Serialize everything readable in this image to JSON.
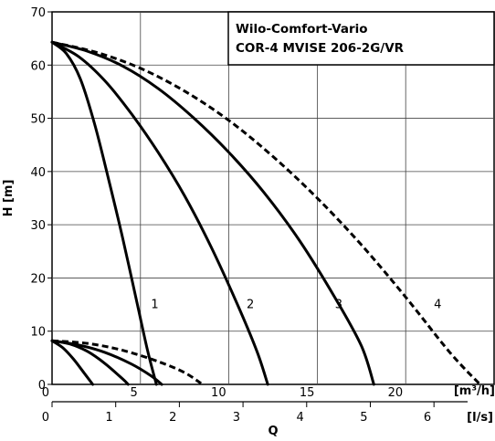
{
  "chart_data": {
    "type": "line",
    "title_lines": [
      "Wilo-Comfort-Vario",
      "COR-4 MVISE 206-2G/VR"
    ],
    "ylabel": "H [m]",
    "xlabel": "Q",
    "x_units": [
      "[m³/h]",
      "[l/s]"
    ],
    "xlim": [
      0,
      25
    ],
    "ylim": [
      0,
      70
    ],
    "y_ticks": [
      0,
      10,
      20,
      30,
      40,
      50,
      60,
      70
    ],
    "x_ticks_m3h": [
      0,
      5,
      10,
      15,
      20
    ],
    "x_ticks_ls": [
      0,
      1,
      2,
      3,
      4,
      5,
      6
    ],
    "series": [
      {
        "name": "1",
        "style": "solid",
        "label_at": [
          5.6,
          15.2
        ],
        "x": [
          0,
          0.8,
          1.6,
          2.4,
          3.2,
          4.0,
          4.8,
          5.4,
          5.9
        ],
        "y": [
          64.3,
          62.2,
          57.4,
          49.0,
          38.5,
          27.4,
          15.4,
          6.4,
          0
        ]
      },
      {
        "name": "2",
        "style": "solid",
        "label_at": [
          11.0,
          15.2
        ],
        "x": [
          0,
          1.5,
          3,
          4.5,
          6,
          7.5,
          9,
          10.5,
          11.6,
          12.2
        ],
        "y": [
          64.3,
          61.6,
          57.0,
          50.8,
          43.6,
          35.4,
          25.8,
          14.9,
          6.1,
          0
        ]
      },
      {
        "name": "3",
        "style": "solid",
        "label_at": [
          16.0,
          15.2
        ],
        "x": [
          0,
          2,
          4,
          6,
          8,
          10,
          12,
          14,
          16,
          17.5,
          18.2
        ],
        "y": [
          64.3,
          62.6,
          59.8,
          55.6,
          50.1,
          43.6,
          36.0,
          27.0,
          16.3,
          7.2,
          0
        ]
      },
      {
        "name": "4",
        "style": "dashed",
        "label_at": [
          21.6,
          15.2
        ],
        "x": [
          0,
          2.5,
          5,
          7.5,
          10,
          12.5,
          15,
          17.5,
          20,
          22.5,
          24.2
        ],
        "y": [
          64.3,
          62.4,
          59.4,
          55.1,
          49.6,
          42.8,
          35.0,
          26.2,
          16.4,
          6.0,
          0
        ]
      },
      {
        "name": "",
        "style": "solid",
        "x": [
          0,
          0.6,
          1.2,
          1.8,
          2.3
        ],
        "y": [
          8.2,
          6.9,
          4.8,
          2.2,
          0
        ]
      },
      {
        "name": "",
        "style": "solid",
        "x": [
          0,
          1,
          2,
          3,
          4,
          4.3
        ],
        "y": [
          8.2,
          7.6,
          6.2,
          3.9,
          1.0,
          0
        ]
      },
      {
        "name": "",
        "style": "solid",
        "x": [
          0,
          1.5,
          3,
          4.5,
          5.6,
          6.2
        ],
        "y": [
          8.2,
          7.4,
          6.0,
          3.8,
          1.6,
          0
        ]
      },
      {
        "name": "",
        "style": "dashed",
        "x": [
          0,
          2,
          4,
          6,
          7.5,
          8.5
        ],
        "y": [
          8.2,
          7.7,
          6.4,
          4.3,
          2.2,
          0
        ]
      }
    ]
  }
}
